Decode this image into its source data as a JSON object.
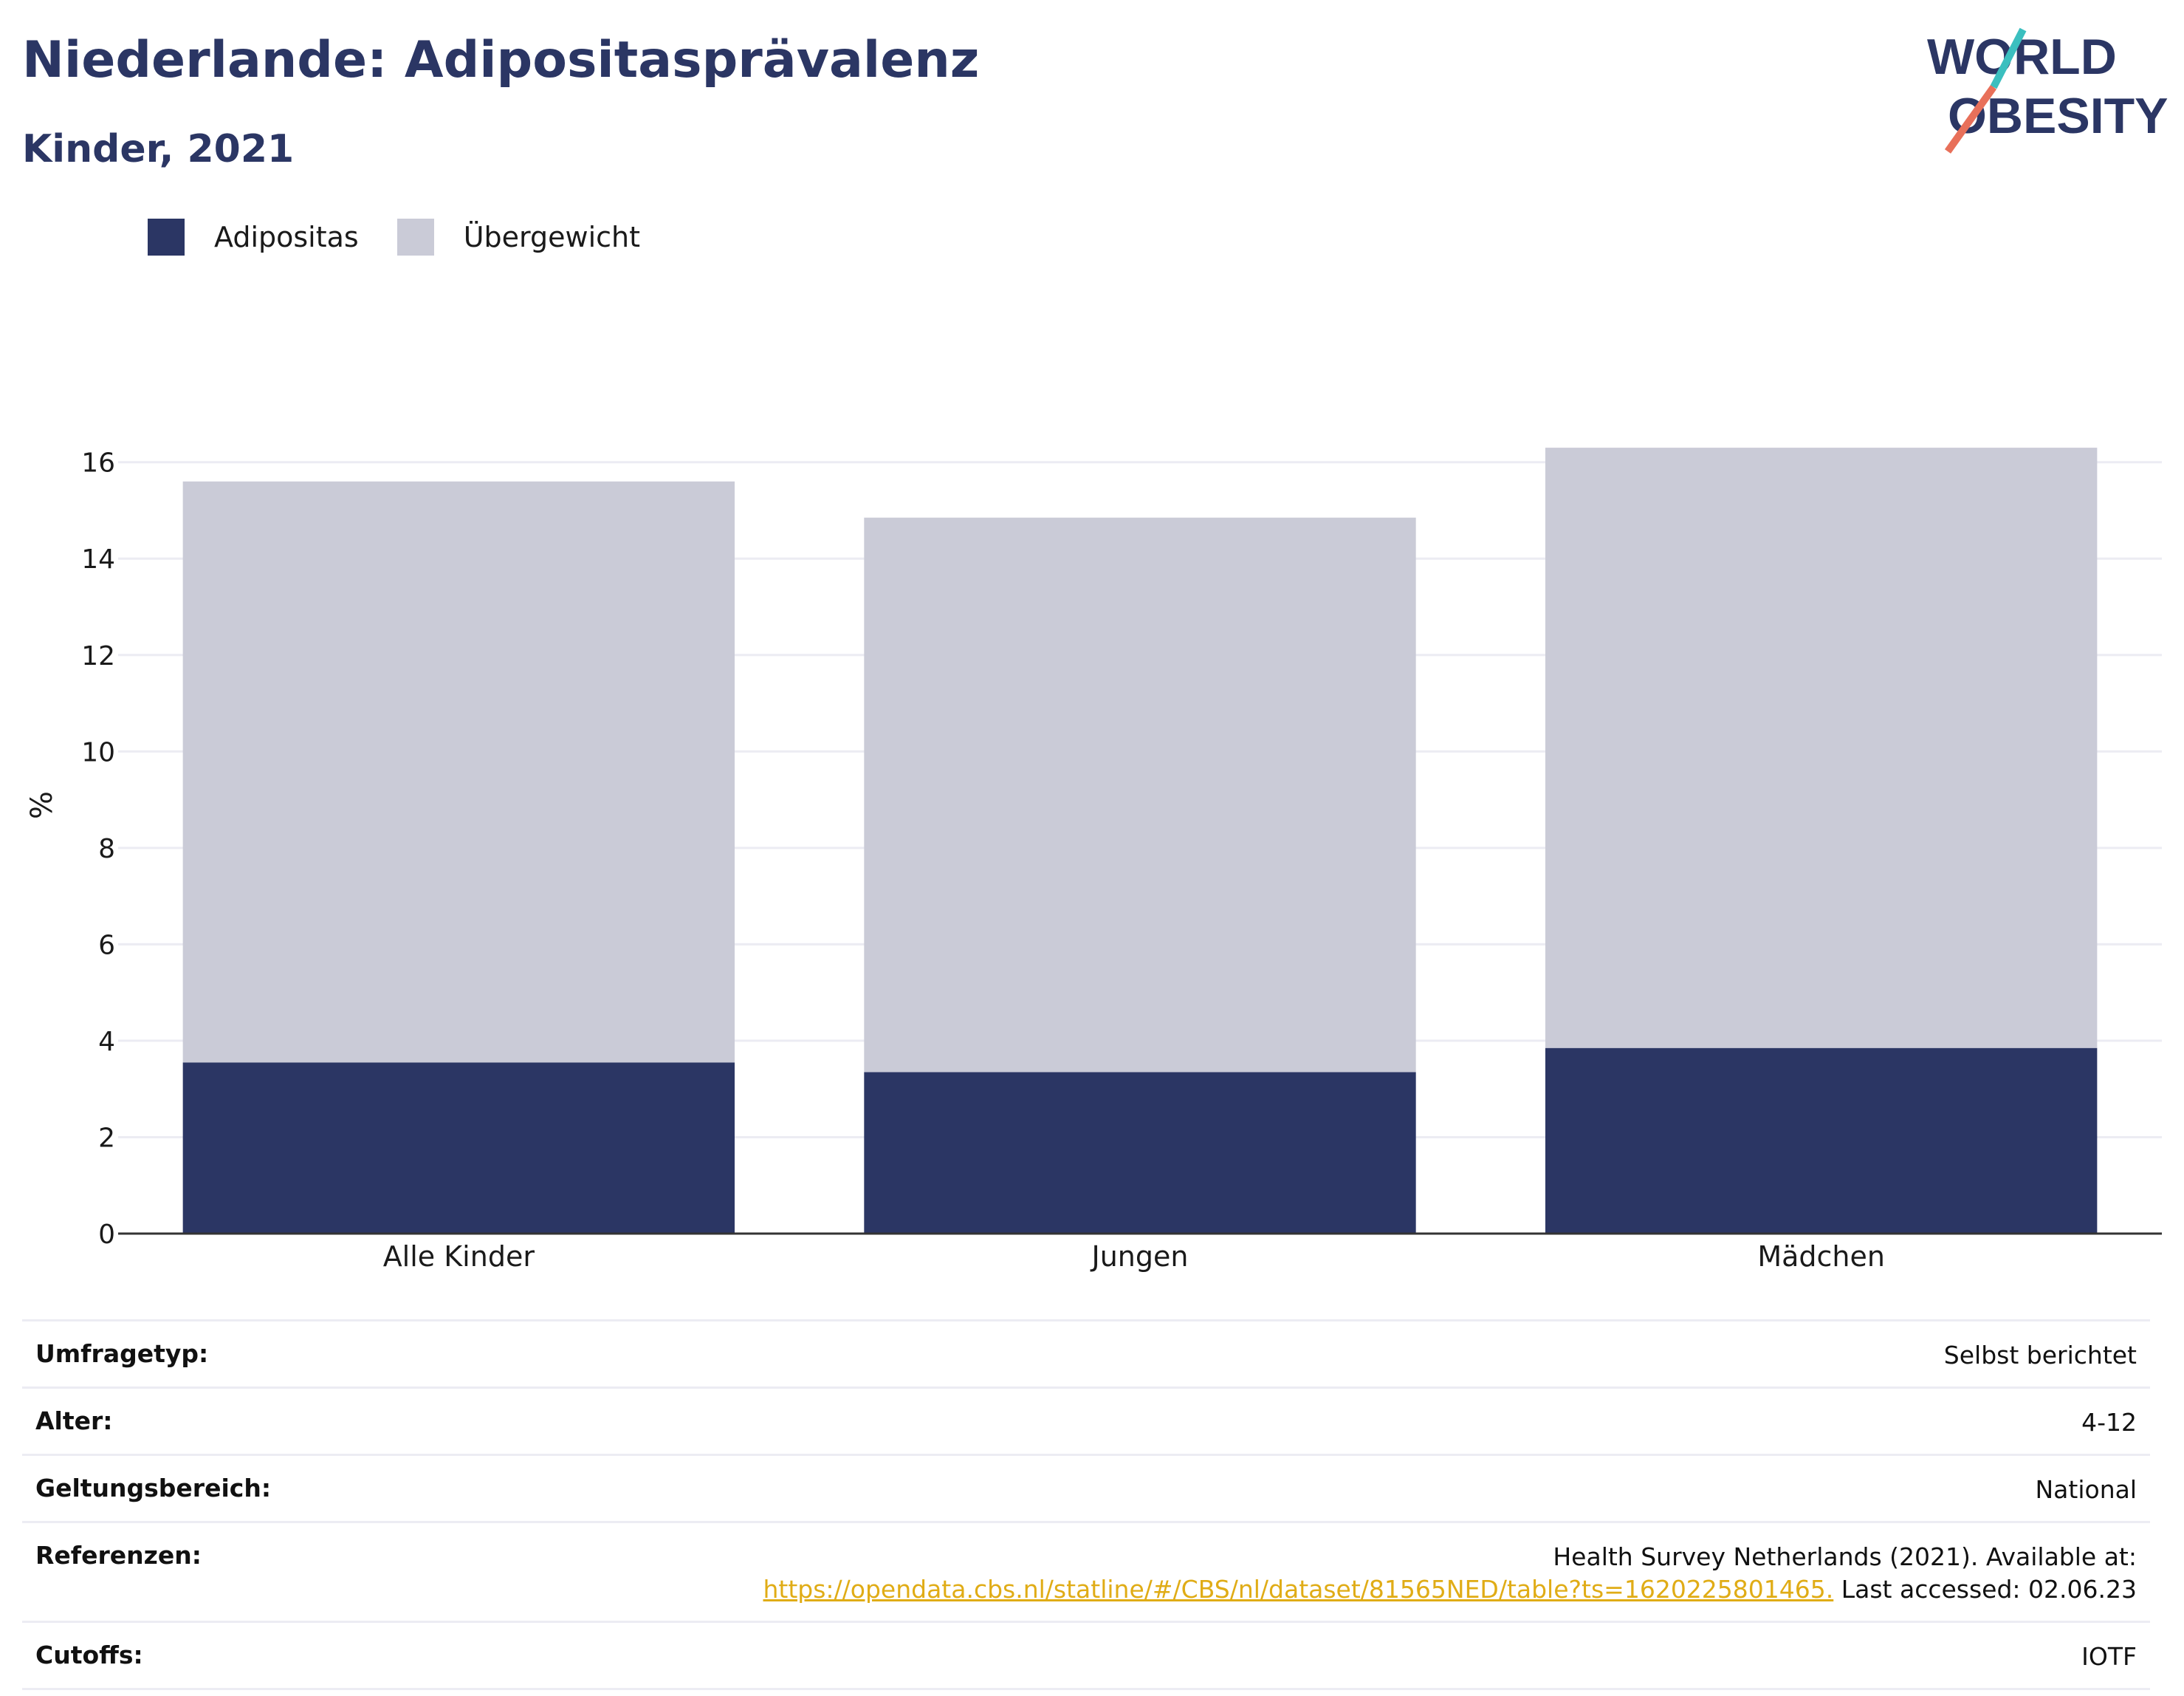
{
  "header": {
    "title": "Niederlande: Adipositasprävalenz",
    "subtitle": "Kinder, 2021"
  },
  "logo": {
    "line1": "WORLD",
    "line2": "OBESITY"
  },
  "colors": {
    "obesity": "#2b3664",
    "overweight": "#cacbd7",
    "grid": "#ececf3",
    "link": "#e0ac16"
  },
  "chart_data": {
    "type": "bar",
    "stacked": true,
    "categories": [
      "Alle Kinder",
      "Jungen",
      "Mädchen"
    ],
    "series": [
      {
        "name": "Adipositas",
        "values": [
          3.55,
          3.35,
          3.85
        ]
      },
      {
        "name": "Übergewicht",
        "values": [
          12.05,
          11.5,
          12.45
        ]
      }
    ],
    "ylabel": "%",
    "ylim": [
      0,
      16.7
    ],
    "yticks": [
      0,
      2,
      4,
      6,
      8,
      10,
      12,
      14,
      16
    ],
    "grid": true,
    "legend_position": "top-left"
  },
  "meta": [
    {
      "key": "Umfragetyp:",
      "value": "Selbst berichtet"
    },
    {
      "key": "Alter:",
      "value": "4-12"
    },
    {
      "key": "Geltungsbereich:",
      "value": "National"
    },
    {
      "key": "Referenzen:",
      "value_line1": "Health Survey Netherlands (2021). Available at:",
      "link": "https://opendata.cbs.nl/statline/#/CBS/nl/dataset/81565NED/table?ts=1620225801465.",
      "value_suffix": " Last accessed: 02.06.23"
    },
    {
      "key": "Cutoffs:",
      "value": "IOTF"
    }
  ]
}
